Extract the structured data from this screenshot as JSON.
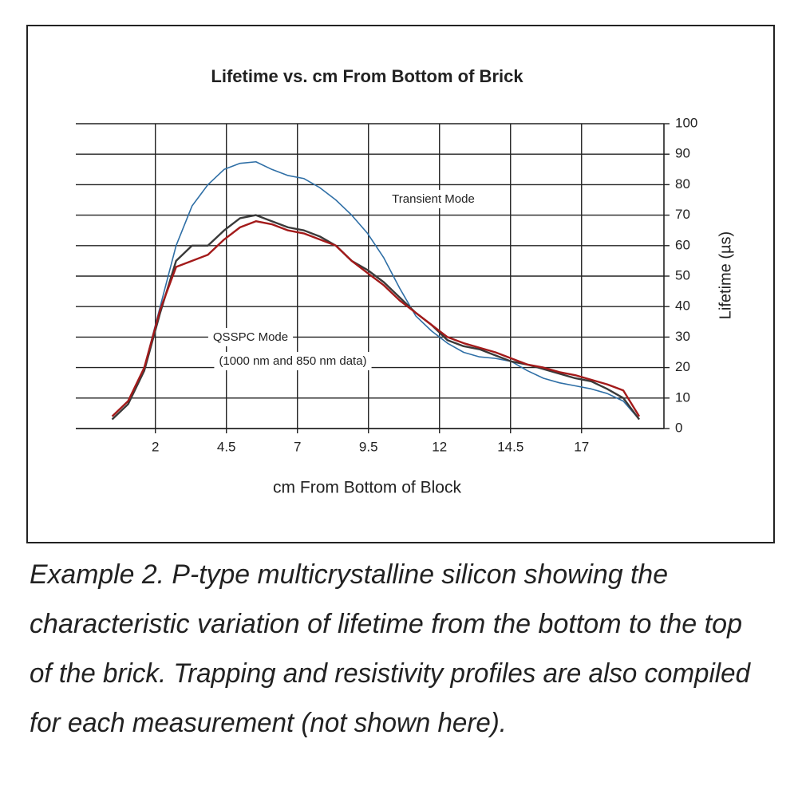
{
  "chart_data": {
    "type": "line",
    "title": "Lifetime vs. cm From Bottom of Brick",
    "x_label": "cm From Bottom of Block",
    "y_label": "Lifetime (µs)",
    "annotations": [
      "Transient Mode",
      "QSSPC Mode",
      "(1000 nm and 850 nm data)"
    ],
    "caption_lines": [
      "Example 2.  P-type multicrystalline silicon showing the",
      "characteristic variation of lifetime from the bottom to the top",
      "of the brick. Trapping and resistivity profiles are also compiled",
      "for each measurement (not shown here)."
    ],
    "x": [
      0.48,
      1.04,
      1.61,
      2.17,
      2.73,
      3.29,
      3.85,
      4.42,
      4.98,
      5.54,
      6.1,
      6.67,
      7.23,
      7.79,
      8.35,
      8.91,
      9.47,
      10.04,
      10.6,
      11.16,
      11.72,
      12.28,
      12.85,
      13.41,
      13.97,
      14.53,
      15.09,
      15.66,
      16.22,
      16.78,
      17.34,
      17.9,
      18.47,
      19.03
    ],
    "series": [
      {
        "color": "#2f6fa6",
        "values": [
          3,
          8,
          20,
          40,
          60,
          73,
          80,
          85,
          87,
          87.5,
          85,
          83,
          82,
          79,
          75,
          70,
          64,
          56,
          46,
          37,
          32,
          28,
          25,
          23.5,
          23,
          22,
          19,
          16.5,
          15,
          14,
          13,
          11.5,
          9,
          3
        ]
      },
      {
        "color": "#3a3a3a",
        "values": [
          3,
          8,
          19,
          38,
          55,
          60,
          60,
          65,
          69,
          70,
          68,
          66,
          65,
          63,
          60,
          55,
          52,
          48,
          43,
          38,
          34,
          29,
          27,
          26,
          24,
          22,
          21,
          19.5,
          18,
          16.5,
          15.5,
          13,
          10,
          3
        ]
      },
      {
        "color": "#a31a1a",
        "values": [
          4,
          9,
          20,
          39,
          53,
          55,
          57,
          62,
          66,
          68,
          67,
          65,
          64,
          62,
          60,
          55,
          51,
          47,
          42,
          38,
          34,
          30,
          28,
          26.5,
          25,
          23,
          21,
          20,
          18.5,
          17.5,
          16,
          14.5,
          12.5,
          4
        ]
      }
    ],
    "xlim": [
      -0.8,
      19.9
    ],
    "xticks": [
      2,
      4.5,
      7,
      9.5,
      12,
      14.5,
      17
    ],
    "ylim": [
      0,
      100
    ],
    "yticks": [
      0,
      10,
      20,
      30,
      40,
      50,
      60,
      70,
      80,
      90,
      100
    ],
    "grid": true
  }
}
